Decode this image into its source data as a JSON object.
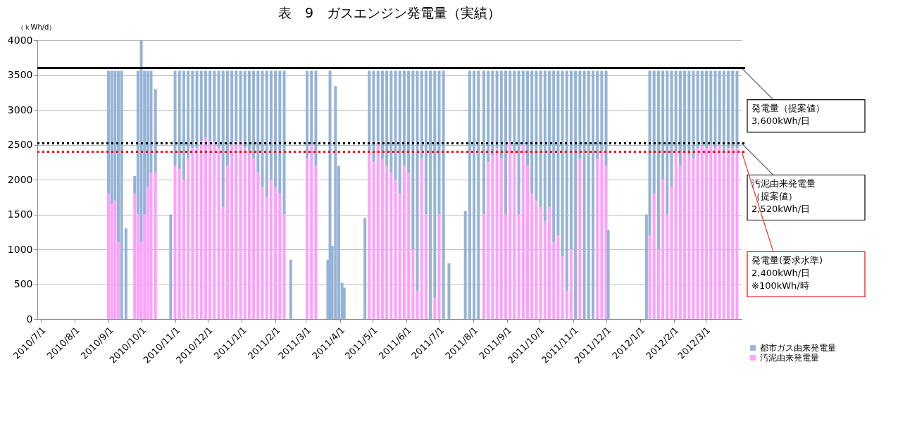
{
  "chart_data": {
    "type": "bar",
    "title": "表　9　ガスエンジン発電量（実績）",
    "ylabel": "（ｋWh/d）",
    "stacked": true,
    "grid": "y",
    "legend": "bottom right",
    "x": [
      "2010-09-01",
      "2010-09-04",
      "2010-09-07",
      "2010-09-10",
      "2010-09-13",
      "2010-09-17",
      "2010-09-25",
      "2010-09-28",
      "2010-10-01",
      "2010-10-04",
      "2010-10-07",
      "2010-10-10",
      "2010-10-14",
      "2010-10-28",
      "2010-11-01",
      "2010-11-05",
      "2010-11-09",
      "2010-11-13",
      "2010-11-17",
      "2010-11-21",
      "2010-11-25",
      "2010-11-29",
      "2010-12-03",
      "2010-12-07",
      "2010-12-11",
      "2010-12-15",
      "2010-12-19",
      "2010-12-23",
      "2010-12-27",
      "2010-12-31",
      "2011-01-04",
      "2011-01-08",
      "2011-01-12",
      "2011-01-16",
      "2011-01-20",
      "2011-01-24",
      "2011-01-28",
      "2011-02-01",
      "2011-02-05",
      "2011-02-09",
      "2011-02-15",
      "2011-03-02",
      "2011-03-06",
      "2011-03-10",
      "2011-03-21",
      "2011-03-23",
      "2011-03-25",
      "2011-03-28",
      "2011-03-31",
      "2011-04-03",
      "2011-04-05",
      "2011-04-24",
      "2011-04-28",
      "2011-05-02",
      "2011-05-06",
      "2011-05-10",
      "2011-05-14",
      "2011-05-18",
      "2011-05-22",
      "2011-05-26",
      "2011-05-30",
      "2011-06-03",
      "2011-06-07",
      "2011-06-11",
      "2011-06-15",
      "2011-06-19",
      "2011-06-23",
      "2011-06-27",
      "2011-07-01",
      "2011-07-05",
      "2011-07-10",
      "2011-07-25",
      "2011-07-29",
      "2011-08-02",
      "2011-08-06",
      "2011-08-11",
      "2011-08-15",
      "2011-08-19",
      "2011-08-23",
      "2011-08-27",
      "2011-08-31",
      "2011-09-04",
      "2011-09-08",
      "2011-09-12",
      "2011-09-16",
      "2011-09-20",
      "2011-09-24",
      "2011-09-28",
      "2011-10-02",
      "2011-10-06",
      "2011-10-10",
      "2011-10-14",
      "2011-10-18",
      "2011-10-22",
      "2011-10-26",
      "2011-10-30",
      "2011-11-03",
      "2011-11-07",
      "2011-11-11",
      "2011-11-15",
      "2011-11-19",
      "2011-11-23",
      "2011-11-27",
      "2011-12-01",
      "2011-12-03",
      "2012-01-07",
      "2012-01-10",
      "2012-01-14",
      "2012-01-18",
      "2012-01-22",
      "2012-01-26",
      "2012-01-30",
      "2012-02-03",
      "2012-02-07",
      "2012-02-11",
      "2012-02-15",
      "2012-02-19",
      "2012-02-23",
      "2012-02-27",
      "2012-03-02",
      "2012-03-06",
      "2012-03-10",
      "2012-03-14",
      "2012-03-18",
      "2012-03-22",
      "2012-03-26",
      "2012-03-30"
    ],
    "series": [
      {
        "name": "汚泥由来発電量",
        "color": "#ff9fff",
        "values": [
          1800,
          1650,
          1700,
          1100,
          null,
          null,
          1800,
          1500,
          1100,
          1500,
          1900,
          2100,
          2100,
          null,
          2200,
          2150,
          2000,
          2300,
          2450,
          2450,
          2550,
          2600,
          2550,
          2550,
          2450,
          1600,
          2200,
          2500,
          2550,
          2550,
          2450,
          2400,
          2300,
          2100,
          1900,
          1750,
          2000,
          1900,
          1800,
          1500,
          null,
          2300,
          2500,
          2200,
          null,
          null,
          null,
          null,
          null,
          null,
          null,
          null,
          2400,
          2250,
          2550,
          2300,
          2200,
          2100,
          2000,
          1800,
          2200,
          2100,
          1000,
          400,
          2300,
          1500,
          null,
          300,
          1500,
          null,
          null,
          null,
          null,
          null,
          null,
          1500,
          2250,
          2350,
          2450,
          2300,
          1500,
          2550,
          2400,
          1500,
          2500,
          2200,
          1800,
          1700,
          1600,
          1400,
          1600,
          1100,
          1200,
          900,
          400,
          1000,
          null,
          2300,
          null,
          null,
          null,
          2300,
          2400,
          2200,
          null,
          null,
          1200,
          1800,
          1000,
          2000,
          1500,
          1900,
          2400,
          2200,
          2400,
          2350,
          2300,
          2450,
          2500,
          2450,
          2500,
          2450,
          2500,
          2400,
          2450,
          2450,
          2450
        ]
      },
      {
        "name": "都市ガス由来発電量",
        "color": "#95b3d7",
        "values": [
          1760,
          1910,
          1860,
          2460,
          3560,
          1300,
          250,
          2060,
          2900,
          2060,
          1660,
          1460,
          1200,
          1500,
          1360,
          1410,
          1560,
          1260,
          1110,
          1110,
          1010,
          960,
          1010,
          1010,
          1110,
          1960,
          1360,
          1060,
          1010,
          1010,
          1110,
          1160,
          1260,
          1460,
          1660,
          1810,
          1560,
          1660,
          1760,
          2060,
          850,
          1260,
          1060,
          1360,
          850,
          3560,
          1050,
          3340,
          2200,
          520,
          450,
          1450,
          1160,
          1310,
          1010,
          1260,
          1360,
          1460,
          1560,
          1760,
          1360,
          1460,
          2560,
          3160,
          1260,
          2060,
          3560,
          3260,
          2060,
          3560,
          800,
          1550,
          3560,
          3560,
          3560,
          2060,
          1310,
          1210,
          1110,
          1260,
          2060,
          1010,
          1160,
          2060,
          1060,
          1360,
          1760,
          1860,
          1960,
          2160,
          1960,
          2460,
          2360,
          2660,
          3160,
          2560,
          3560,
          1260,
          3560,
          3560,
          3560,
          1260,
          1160,
          1360,
          1280,
          1500,
          2360,
          1760,
          2560,
          1560,
          2060,
          1660,
          1160,
          1360,
          1160,
          1210,
          1260,
          1110,
          1060,
          1110,
          1060,
          1110,
          1060,
          1160,
          1110,
          1110,
          1110
        ]
      }
    ],
    "xlim": [
      "2010-07-01",
      "2012-03-31"
    ],
    "xticks": [
      {
        "value": "2010-07-01",
        "label": "2010/7/1"
      },
      {
        "value": "2010-08-01",
        "label": "2010/8/1"
      },
      {
        "value": "2010-09-01",
        "label": "2010/9/1"
      },
      {
        "value": "2010-10-01",
        "label": "2010/10/1"
      },
      {
        "value": "2010-11-01",
        "label": "2010/11/1"
      },
      {
        "value": "2010-12-01",
        "label": "2010/12/1"
      },
      {
        "value": "2011-01-01",
        "label": "2011/1/1"
      },
      {
        "value": "2011-02-01",
        "label": "2011/2/1"
      },
      {
        "value": "2011-03-01",
        "label": "2011/3/1"
      },
      {
        "value": "2011-04-01",
        "label": "2011/4/1"
      },
      {
        "value": "2011-05-01",
        "label": "2011/5/1"
      },
      {
        "value": "2011-06-01",
        "label": "2011/6/1"
      },
      {
        "value": "2011-07-01",
        "label": "2011/7/1"
      },
      {
        "value": "2011-08-01",
        "label": "2011/8/1"
      },
      {
        "value": "2011-09-01",
        "label": "2011/9/1"
      },
      {
        "value": "2011-10-01",
        "label": "2011/10/1"
      },
      {
        "value": "2011-11-01",
        "label": "2011/11/1"
      },
      {
        "value": "2011-12-01",
        "label": "2011/12/1"
      },
      {
        "value": "2012-01-01",
        "label": "2012/1/1"
      },
      {
        "value": "2012-02-01",
        "label": "2012/2/1"
      },
      {
        "value": "2012-03-01",
        "label": "2012/3/1"
      }
    ],
    "ylim": [
      0,
      4000
    ],
    "yticks": [
      0,
      500,
      1000,
      1500,
      2000,
      2500,
      3000,
      3500,
      4000
    ],
    "ref_lines": [
      {
        "axis": "y",
        "value": 3600,
        "label": "発電量（提案値）3,600kWh/日",
        "color": "#000000",
        "line_style": "solid"
      },
      {
        "axis": "y",
        "value": 2520,
        "label": "汚泥由来発電量（提案値）2,520kWh/日",
        "color": "#000000",
        "line_style": "dotted"
      },
      {
        "axis": "y",
        "value": 2400,
        "label": "発電量(要求水準)2,400kWh/日※100kWh/時",
        "color": "#ff0000",
        "line_style": "dotted"
      }
    ]
  }
}
